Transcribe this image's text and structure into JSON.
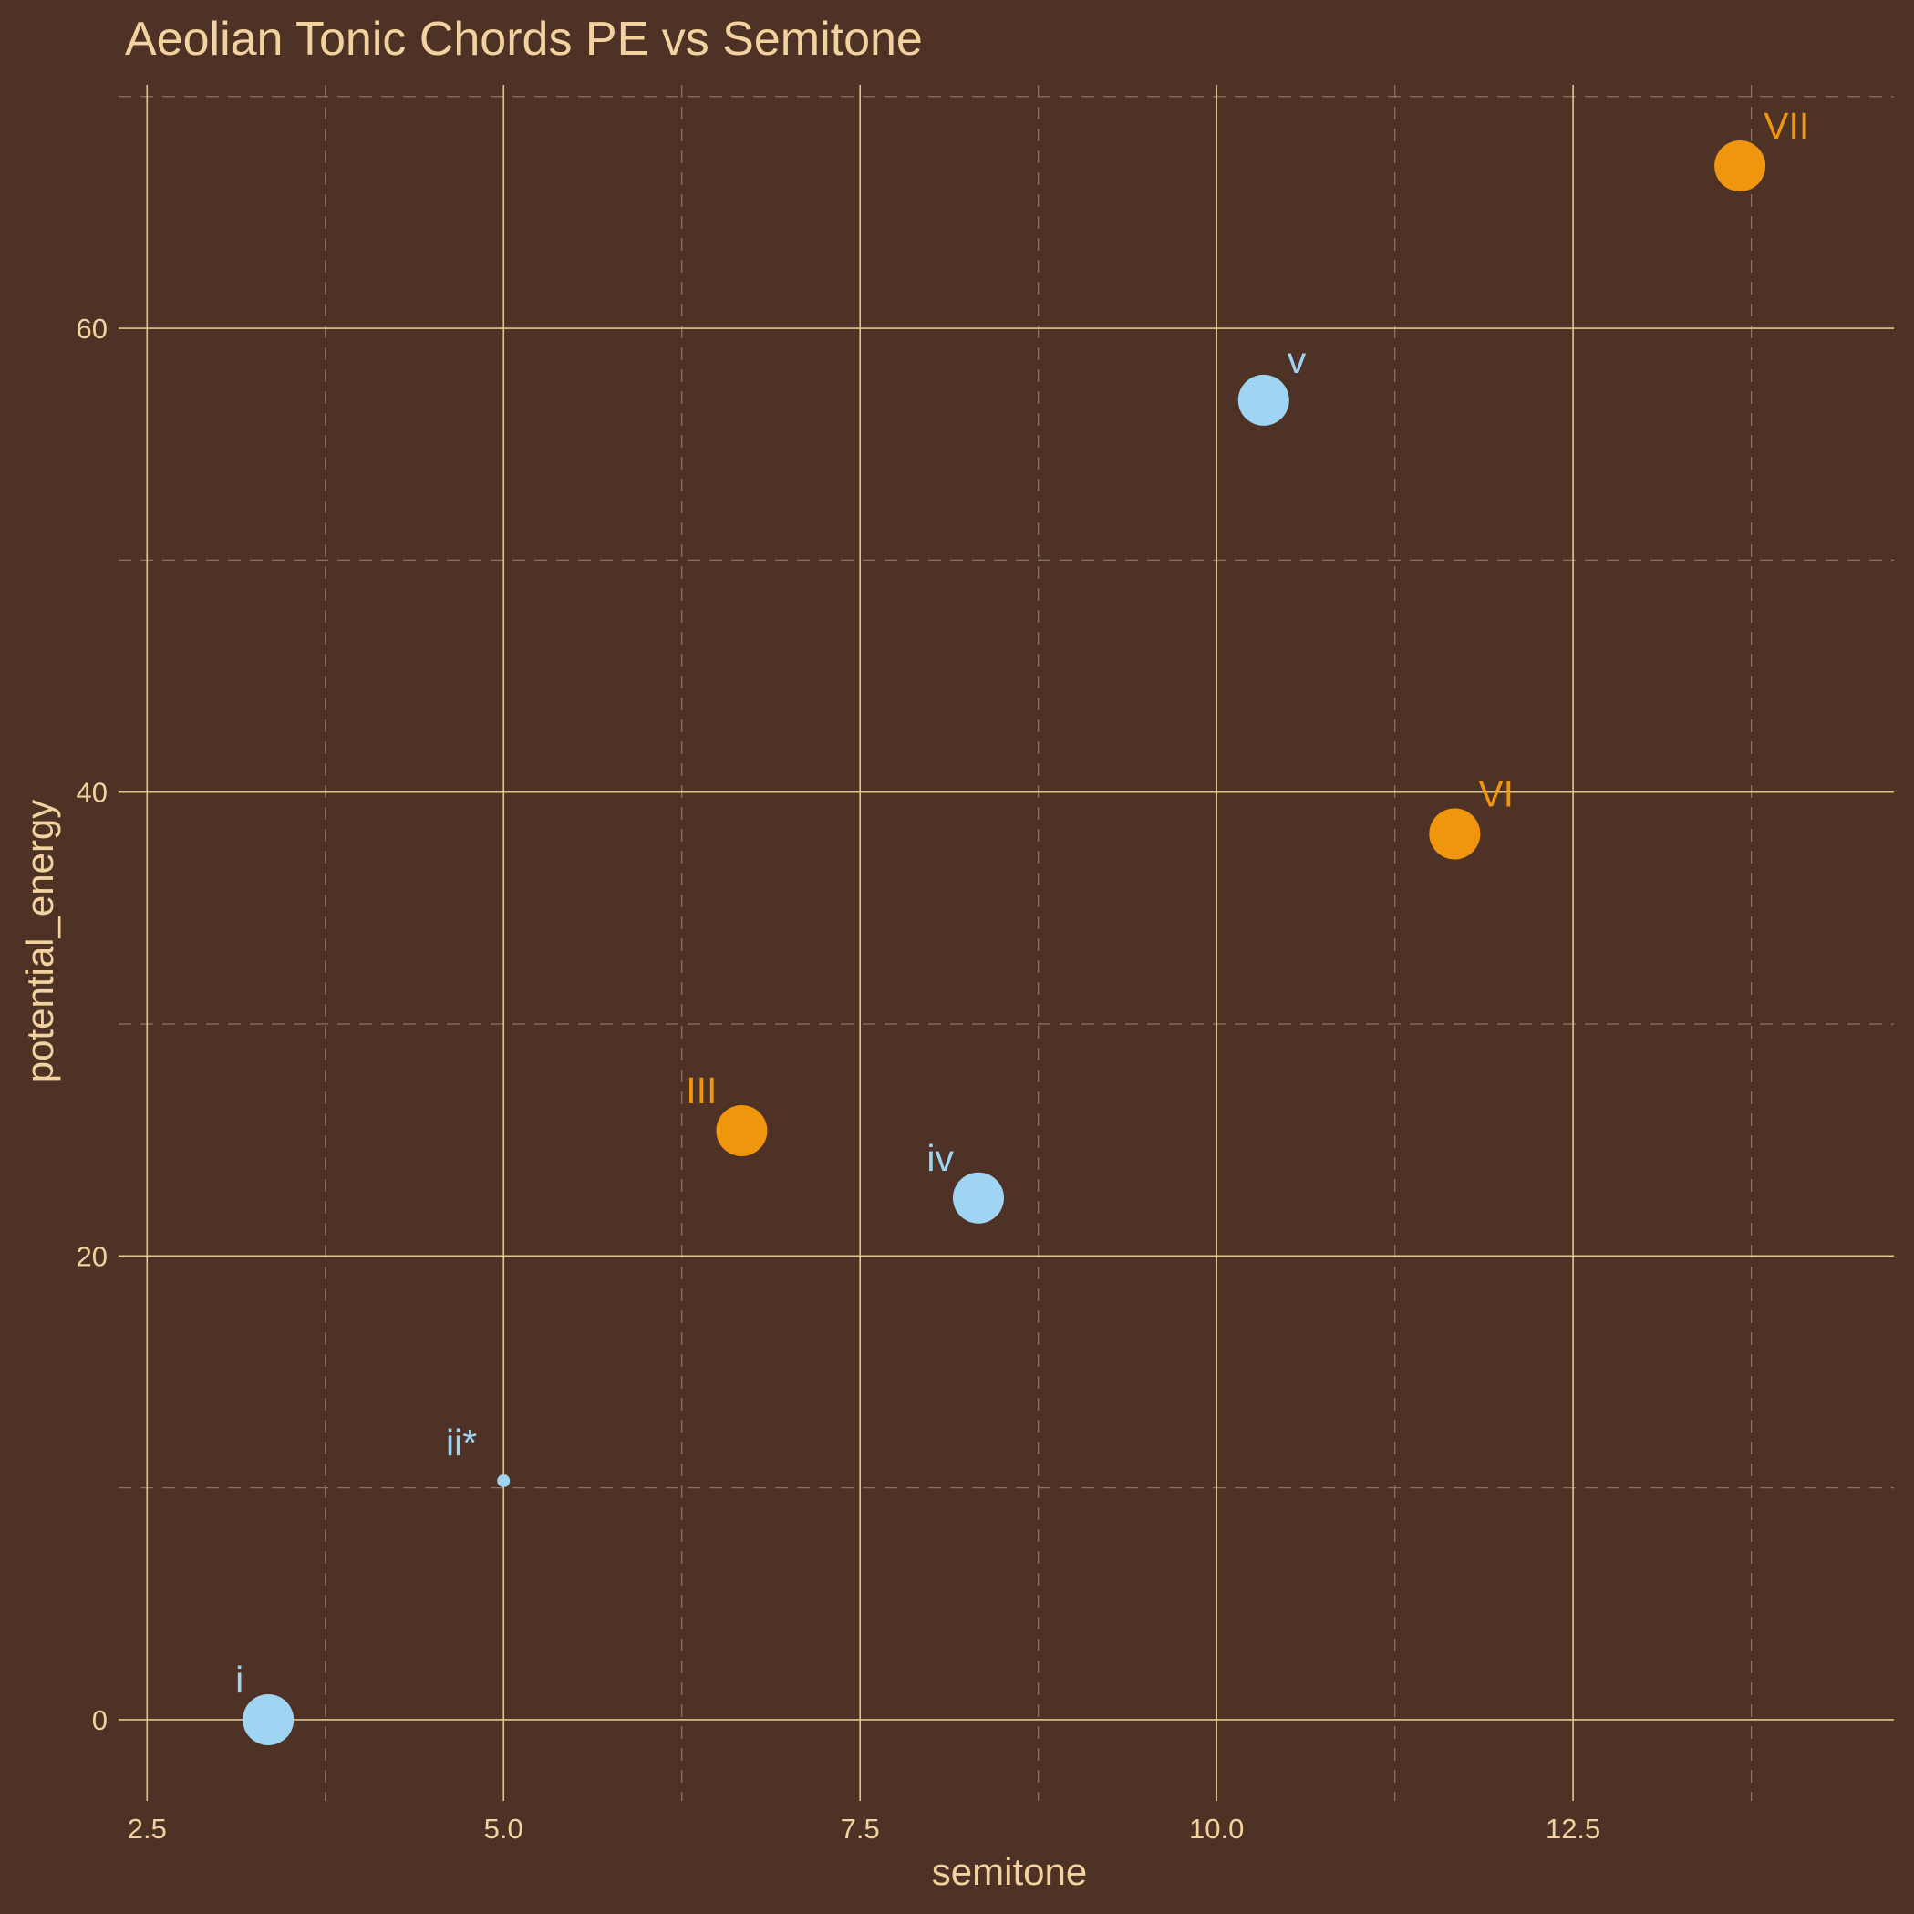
{
  "colors": {
    "background": "#4e3226",
    "text": "#f2d29e",
    "major_grid": "#e3c48e",
    "minor_grid": "#8a7366",
    "minor_type": "#f0960e",
    "major_type": "#9fd4f2"
  },
  "chart_data": {
    "type": "scatter",
    "title": "Aeolian Tonic Chords PE vs Semitone",
    "xlabel": "semitone",
    "ylabel": "potential_energy",
    "xlim": [
      2.3,
      14.75
    ],
    "ylim": [
      -3.5,
      70.5
    ],
    "x_major_ticks": [
      2.5,
      5.0,
      7.5,
      10.0,
      12.5
    ],
    "x_tick_labels": [
      "2.5",
      "5.0",
      "7.5",
      "10.0",
      "12.5"
    ],
    "x_minor_ticks": [
      3.75,
      6.25,
      8.75,
      11.25,
      13.75
    ],
    "y_major_ticks": [
      0,
      20,
      40,
      60
    ],
    "y_tick_labels": [
      "0",
      "20",
      "40",
      "60"
    ],
    "y_minor_ticks": [
      10,
      30,
      50,
      70
    ],
    "grid": true,
    "legend": "none",
    "points": [
      {
        "label": "i",
        "x": 3.35,
        "y": 0.0,
        "size": "large",
        "color_key": "major_type"
      },
      {
        "label": "ii*",
        "x": 5.0,
        "y": 10.3,
        "size": "small",
        "color_key": "major_type"
      },
      {
        "label": "III",
        "x": 6.67,
        "y": 25.4,
        "size": "large",
        "color_key": "minor_type"
      },
      {
        "label": "iv",
        "x": 8.33,
        "y": 22.5,
        "size": "large",
        "color_key": "major_type"
      },
      {
        "label": "v",
        "x": 10.33,
        "y": 56.9,
        "size": "large",
        "color_key": "major_type"
      },
      {
        "label": "VI",
        "x": 11.67,
        "y": 38.2,
        "size": "large",
        "color_key": "minor_type"
      },
      {
        "label": "VII",
        "x": 13.67,
        "y": 67.0,
        "size": "large",
        "color_key": "minor_type"
      }
    ]
  }
}
